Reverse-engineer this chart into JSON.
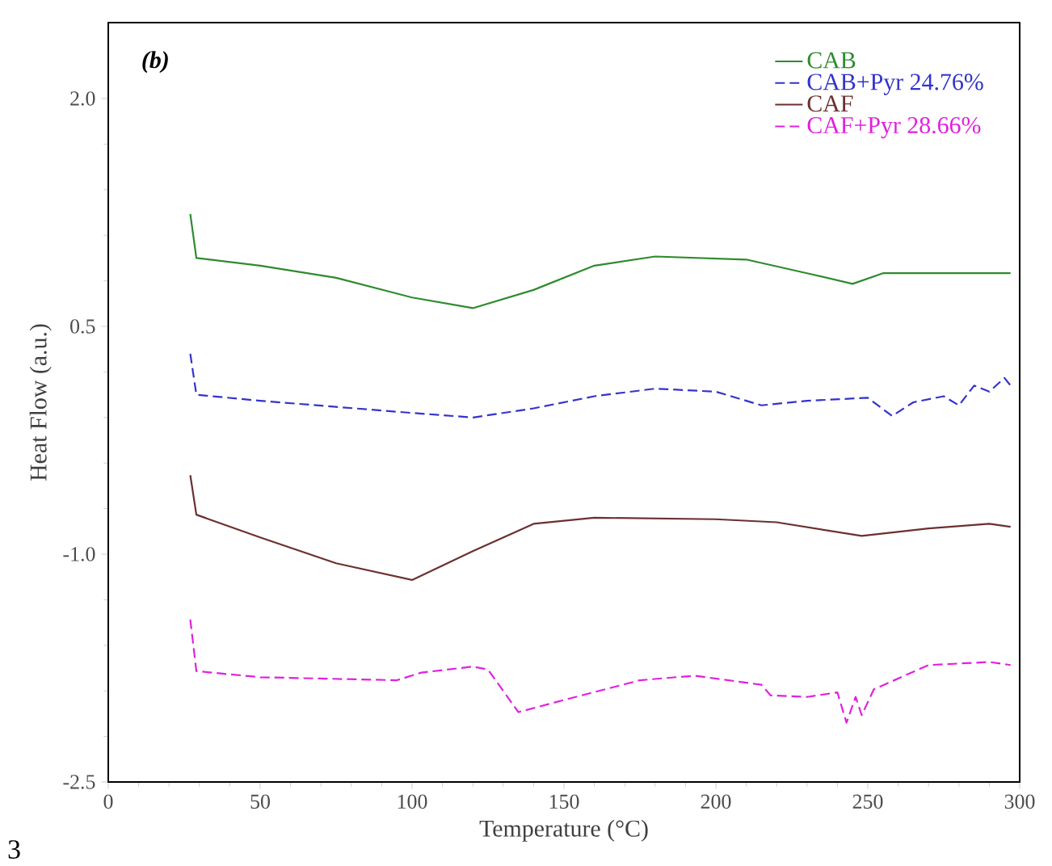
{
  "chart_data": {
    "type": "line",
    "xlabel": "Temperature (°C)",
    "ylabel": "Heat Flow (a.u.)",
    "annotations": [
      "(b)",
      "3"
    ],
    "xlim": [
      0,
      300
    ],
    "ylim": [
      -2.5,
      2.5
    ],
    "xticks": [
      0,
      50,
      100,
      150,
      200,
      250,
      300
    ],
    "yticks": [
      {
        "value": 2,
        "label": "2.0"
      },
      {
        "value": 0.5,
        "label": "0.5"
      },
      {
        "value": -1,
        "label": "-1.0"
      },
      {
        "value": -2.5,
        "label": "-2.5"
      }
    ],
    "grid": false,
    "legend": "top right",
    "marker": "none",
    "series": [
      {
        "name": "CAB",
        "color": "#2e8b2e",
        "line_style": "solid",
        "x": [
          27,
          29,
          50,
          75,
          100,
          120,
          140,
          160,
          180,
          210,
          230,
          245,
          255,
          297
        ],
        "values": [
          1.24,
          0.95,
          0.9,
          0.82,
          0.69,
          0.62,
          0.74,
          0.9,
          0.96,
          0.94,
          0.85,
          0.78,
          0.85,
          0.85
        ]
      },
      {
        "name": "CAB+Pyr 24.76%",
        "color": "#3333cc",
        "line_style": "dashed",
        "x": [
          27,
          29,
          50,
          75,
          100,
          120,
          140,
          160,
          180,
          200,
          215,
          230,
          250,
          258,
          265,
          275,
          280,
          285,
          290,
          295,
          297
        ],
        "values": [
          0.32,
          0.05,
          0.01,
          -0.03,
          -0.07,
          -0.1,
          -0.04,
          0.04,
          0.09,
          0.07,
          -0.02,
          0.01,
          0.03,
          -0.09,
          0.0,
          0.04,
          -0.02,
          0.11,
          0.07,
          0.16,
          0.11
        ]
      },
      {
        "name": "CAF",
        "color": "#6b3030",
        "line_style": "solid",
        "x": [
          27,
          29,
          50,
          75,
          100,
          120,
          140,
          160,
          200,
          220,
          248,
          270,
          290,
          297
        ],
        "values": [
          -0.48,
          -0.74,
          -0.89,
          -1.06,
          -1.17,
          -0.98,
          -0.8,
          -0.76,
          -0.77,
          -0.79,
          -0.88,
          -0.83,
          -0.8,
          -0.82
        ]
      },
      {
        "name": "CAF+Pyr 28.66%",
        "color": "#e020e0",
        "line_style": "dashed",
        "x": [
          27,
          29,
          50,
          95,
          103,
          120,
          125,
          135,
          150,
          175,
          193,
          215,
          218,
          230,
          240,
          243,
          246,
          248,
          252,
          270,
          290,
          297
        ],
        "values": [
          -1.43,
          -1.77,
          -1.81,
          -1.83,
          -1.78,
          -1.74,
          -1.76,
          -2.04,
          -1.96,
          -1.83,
          -1.8,
          -1.86,
          -1.93,
          -1.94,
          -1.91,
          -2.11,
          -1.94,
          -2.06,
          -1.89,
          -1.73,
          -1.71,
          -1.73
        ]
      }
    ]
  }
}
